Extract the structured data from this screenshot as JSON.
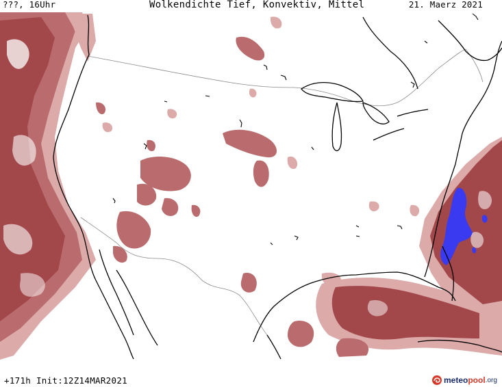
{
  "header": {
    "valid_time": "???, 16Uhr",
    "title": "Wolkendichte  Tief, Konvektiv, Mittel",
    "date": "21. Maerz 2021"
  },
  "footer": {
    "run_info": "+171h Init:12Z14MAR2021"
  },
  "logo": {
    "part1": "meteo",
    "part2": "pool",
    "part3": ".org"
  },
  "colors": {
    "cloud_dark": "#a2474a",
    "cloud_mid": "#b96b6d",
    "cloud_light": "#dcaaa9",
    "convective": "#3a3af0",
    "coast": "#000000",
    "border": "#8a8a8a",
    "background": "#ffffff"
  }
}
